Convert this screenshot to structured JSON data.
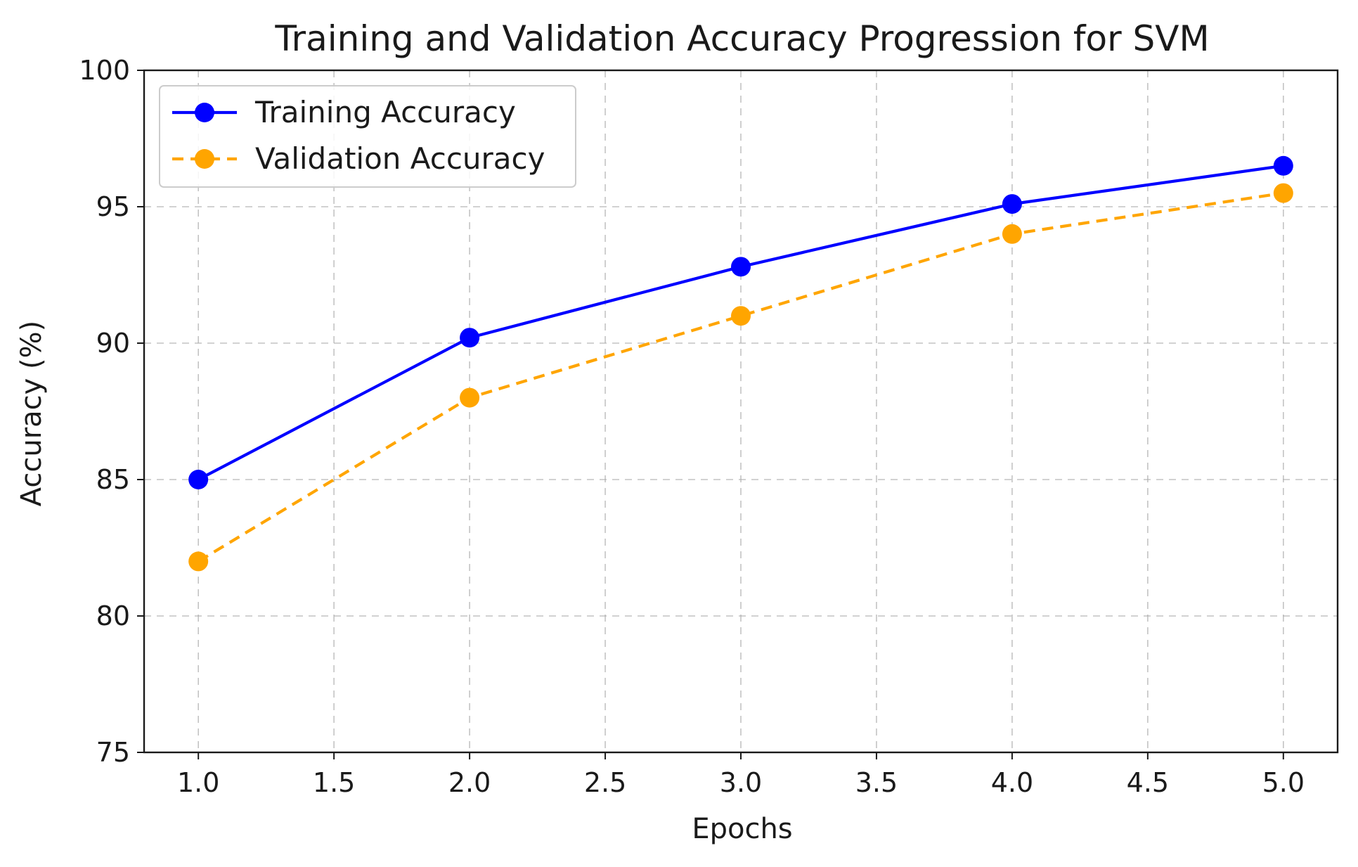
{
  "chart_data": {
    "type": "line",
    "title": "Training and Validation Accuracy Progression for SVM",
    "xlabel": "Epochs",
    "ylabel": "Accuracy (%)",
    "x": [
      1,
      2,
      3,
      4,
      5
    ],
    "xlim": [
      0.8,
      5.2
    ],
    "ylim": [
      75,
      100
    ],
    "xticks": [
      1.0,
      1.5,
      2.0,
      2.5,
      3.0,
      3.5,
      4.0,
      4.5,
      5.0
    ],
    "xtick_labels": [
      "1.0",
      "1.5",
      "2.0",
      "2.5",
      "3.0",
      "3.5",
      "4.0",
      "4.5",
      "5.0"
    ],
    "yticks": [
      75,
      80,
      85,
      90,
      95,
      100
    ],
    "ytick_labels": [
      "75",
      "80",
      "85",
      "90",
      "95",
      "100"
    ],
    "grid": true,
    "legend_position": "top-left",
    "series": [
      {
        "name": "Training Accuracy",
        "values": [
          85.0,
          90.2,
          92.8,
          95.1,
          96.5
        ],
        "color": "#0000ff",
        "line_style": "solid",
        "marker": "circle"
      },
      {
        "name": "Validation Accuracy",
        "values": [
          82.0,
          88.0,
          91.0,
          94.0,
          95.5
        ],
        "color": "#ffa500",
        "line_style": "dashed",
        "marker": "circle"
      }
    ]
  }
}
